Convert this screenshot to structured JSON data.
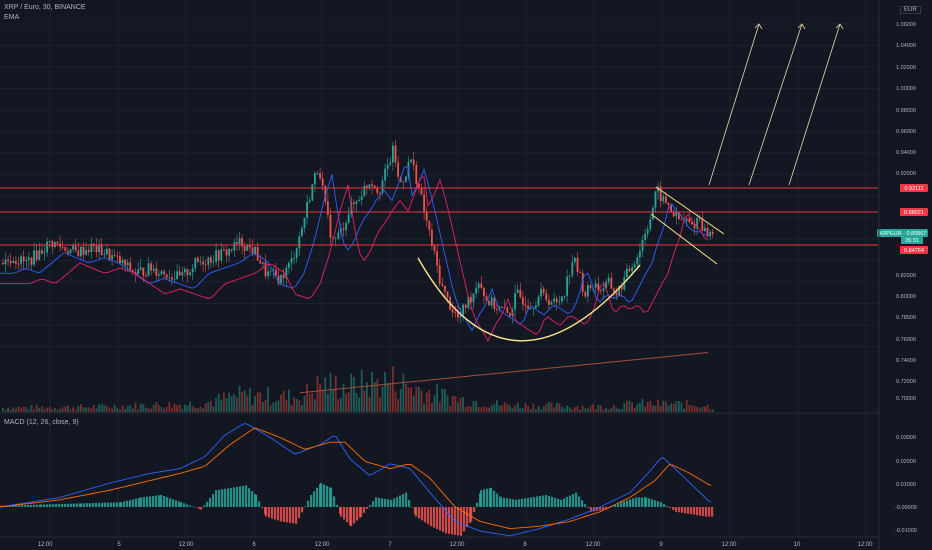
{
  "header": {
    "symbol_line": "XRP / Euro, 30, BINANCE",
    "ema_label": "EMA",
    "macd_label": "MACD (12, 26, close, 9)",
    "currency": "EUR"
  },
  "price_axis": {
    "labels": [
      "1.06000",
      "1.04000",
      "1.02000",
      "1.00000",
      "0.98000",
      "0.96000",
      "0.94000",
      "0.92000",
      "0.82000",
      "0.80000",
      "0.78000",
      "0.76000",
      "0.74000",
      "0.72000",
      "0.70000"
    ]
  },
  "macd_axis": {
    "labels": [
      "0.03000",
      "0.02000",
      "0.01000",
      "-0.00000",
      "-0.01000"
    ]
  },
  "time_axis": {
    "labels": [
      "12:00",
      "5",
      "12:00",
      "6",
      "12:00",
      "7",
      "12:00",
      "8",
      "12:00",
      "9",
      "12:00",
      "10",
      "12:00"
    ]
  },
  "price_tags": [
    {
      "text": "0.92111",
      "color": "#f23645"
    },
    {
      "text": "0.88021",
      "color": "#f23645"
    },
    {
      "text": "XRPEUR · 0.85867",
      "color": "#26a69a"
    },
    {
      "text": "26:31",
      "color": "#26a69a"
    },
    {
      "text": "0.84764",
      "color": "#f23645"
    }
  ],
  "colors": {
    "up": "#26a69a",
    "down": "#ef5350",
    "level": "#f23645",
    "curve": "#fde68a",
    "ema_fast": "#2962ff",
    "ema_slow": "#e91e63",
    "ema_long": "#a24d3c",
    "macd": "#2962ff",
    "signal": "#ff6d00"
  },
  "chart_data": {
    "type": "candlestick",
    "levels": [
      0.92111,
      0.88021,
      0.84764
    ],
    "ylim": [
      0.69,
      1.065
    ],
    "close_path": [
      [
        0,
        0.83
      ],
      [
        12,
        0.835
      ],
      [
        25,
        0.83
      ],
      [
        38,
        0.84
      ],
      [
        50,
        0.85
      ],
      [
        62,
        0.845
      ],
      [
        75,
        0.84
      ],
      [
        90,
        0.845
      ],
      [
        105,
        0.84
      ],
      [
        120,
        0.83
      ],
      [
        135,
        0.82
      ],
      [
        150,
        0.825
      ],
      [
        165,
        0.82
      ],
      [
        180,
        0.815
      ],
      [
        195,
        0.83
      ],
      [
        210,
        0.835
      ],
      [
        225,
        0.84
      ],
      [
        240,
        0.85
      ],
      [
        255,
        0.84
      ],
      [
        265,
        0.82
      ],
      [
        280,
        0.815
      ],
      [
        290,
        0.83
      ],
      [
        300,
        0.86
      ],
      [
        310,
        0.9
      ],
      [
        318,
        0.925
      ],
      [
        325,
        0.88
      ],
      [
        332,
        0.85
      ],
      [
        340,
        0.86
      ],
      [
        348,
        0.88
      ],
      [
        356,
        0.89
      ],
      [
        362,
        0.9
      ],
      [
        370,
        0.91
      ],
      [
        378,
        0.9
      ],
      [
        386,
        0.92
      ],
      [
        393,
        0.94
      ],
      [
        398,
        0.905
      ],
      [
        404,
        0.915
      ],
      [
        410,
        0.93
      ],
      [
        416,
        0.91
      ],
      [
        422,
        0.885
      ],
      [
        428,
        0.86
      ],
      [
        434,
        0.835
      ],
      [
        440,
        0.81
      ],
      [
        446,
        0.795
      ],
      [
        452,
        0.785
      ],
      [
        458,
        0.775
      ],
      [
        465,
        0.79
      ],
      [
        472,
        0.8
      ],
      [
        478,
        0.815
      ],
      [
        485,
        0.795
      ],
      [
        492,
        0.79
      ],
      [
        500,
        0.785
      ],
      [
        508,
        0.78
      ],
      [
        516,
        0.8
      ],
      [
        522,
        0.795
      ],
      [
        530,
        0.79
      ],
      [
        540,
        0.8
      ],
      [
        548,
        0.795
      ],
      [
        556,
        0.79
      ],
      [
        564,
        0.805
      ],
      [
        572,
        0.835
      ],
      [
        578,
        0.82
      ],
      [
        584,
        0.8
      ],
      [
        592,
        0.81
      ],
      [
        600,
        0.805
      ],
      [
        608,
        0.81
      ],
      [
        616,
        0.8
      ],
      [
        624,
        0.815
      ],
      [
        632,
        0.83
      ],
      [
        638,
        0.84
      ],
      [
        644,
        0.86
      ],
      [
        650,
        0.875
      ],
      [
        656,
        0.9
      ],
      [
        662,
        0.89
      ],
      [
        668,
        0.885
      ],
      [
        674,
        0.875
      ],
      [
        680,
        0.87
      ],
      [
        686,
        0.87
      ],
      [
        692,
        0.865
      ],
      [
        698,
        0.875
      ],
      [
        704,
        0.86
      ],
      [
        710,
        0.858
      ]
    ],
    "volume_profile": [
      [
        0,
        4
      ],
      [
        100,
        5
      ],
      [
        200,
        8
      ],
      [
        240,
        16
      ],
      [
        300,
        14
      ],
      [
        320,
        26
      ],
      [
        350,
        24
      ],
      [
        390,
        30
      ],
      [
        430,
        18
      ],
      [
        460,
        12
      ],
      [
        500,
        7
      ],
      [
        540,
        6
      ],
      [
        600,
        5
      ],
      [
        640,
        8
      ],
      [
        700,
        7
      ],
      [
        710,
        5
      ]
    ],
    "macd_histogram": [
      [
        0,
        0.0005
      ],
      [
        40,
        0.001
      ],
      [
        80,
        0.0015
      ],
      [
        120,
        0.002
      ],
      [
        140,
        0.004
      ],
      [
        160,
        0.005
      ],
      [
        180,
        0.002
      ],
      [
        200,
        -0.001
      ],
      [
        215,
        0.007
      ],
      [
        230,
        0.008
      ],
      [
        245,
        0.009
      ],
      [
        255,
        0.005
      ],
      [
        265,
        -0.004
      ],
      [
        280,
        -0.006
      ],
      [
        295,
        -0.007
      ],
      [
        310,
        0.005
      ],
      [
        320,
        0.01
      ],
      [
        330,
        0.008
      ],
      [
        340,
        -0.004
      ],
      [
        350,
        -0.008
      ],
      [
        360,
        -0.004
      ],
      [
        375,
        0.004
      ],
      [
        390,
        0.003
      ],
      [
        405,
        0.006
      ],
      [
        415,
        -0.004
      ],
      [
        430,
        -0.008
      ],
      [
        445,
        -0.011
      ],
      [
        460,
        -0.012
      ],
      [
        470,
        -0.006
      ],
      [
        480,
        0.007
      ],
      [
        490,
        0.008
      ],
      [
        500,
        0.004
      ],
      [
        515,
        0.003
      ],
      [
        530,
        0.004
      ],
      [
        545,
        0.005
      ],
      [
        560,
        0.003
      ],
      [
        575,
        0.006
      ],
      [
        590,
        -0.002
      ],
      [
        605,
        -0.001
      ],
      [
        620,
        0.002
      ],
      [
        635,
        0.004
      ],
      [
        645,
        0.004
      ],
      [
        660,
        0.002
      ],
      [
        675,
        -0.002
      ],
      [
        690,
        -0.003
      ],
      [
        705,
        -0.004
      ]
    ],
    "macd_line": [
      [
        0,
        0.0
      ],
      [
        60,
        0.004
      ],
      [
        110,
        0.01
      ],
      [
        150,
        0.014
      ],
      [
        180,
        0.016
      ],
      [
        205,
        0.021
      ],
      [
        225,
        0.03
      ],
      [
        245,
        0.035
      ],
      [
        270,
        0.029
      ],
      [
        295,
        0.022
      ],
      [
        320,
        0.026
      ],
      [
        335,
        0.03
      ],
      [
        350,
        0.02
      ],
      [
        370,
        0.013
      ],
      [
        390,
        0.018
      ],
      [
        410,
        0.016
      ],
      [
        430,
        0.006
      ],
      [
        455,
        -0.006
      ],
      [
        480,
        -0.01
      ],
      [
        510,
        -0.012
      ],
      [
        540,
        -0.009
      ],
      [
        570,
        -0.005
      ],
      [
        600,
        0.0
      ],
      [
        630,
        0.006
      ],
      [
        650,
        0.015
      ],
      [
        662,
        0.021
      ],
      [
        680,
        0.014
      ],
      [
        700,
        0.006
      ],
      [
        710,
        0.002
      ]
    ],
    "signal_line": [
      [
        0,
        0.0
      ],
      [
        60,
        0.003
      ],
      [
        110,
        0.007
      ],
      [
        150,
        0.011
      ],
      [
        180,
        0.014
      ],
      [
        205,
        0.017
      ],
      [
        230,
        0.026
      ],
      [
        255,
        0.033
      ],
      [
        280,
        0.029
      ],
      [
        305,
        0.024
      ],
      [
        330,
        0.027
      ],
      [
        345,
        0.027
      ],
      [
        365,
        0.019
      ],
      [
        390,
        0.016
      ],
      [
        410,
        0.018
      ],
      [
        430,
        0.012
      ],
      [
        455,
        0.0
      ],
      [
        480,
        -0.006
      ],
      [
        510,
        -0.009
      ],
      [
        540,
        -0.008
      ],
      [
        570,
        -0.006
      ],
      [
        600,
        -0.002
      ],
      [
        630,
        0.004
      ],
      [
        655,
        0.011
      ],
      [
        670,
        0.018
      ],
      [
        690,
        0.014
      ],
      [
        710,
        0.009
      ]
    ]
  }
}
